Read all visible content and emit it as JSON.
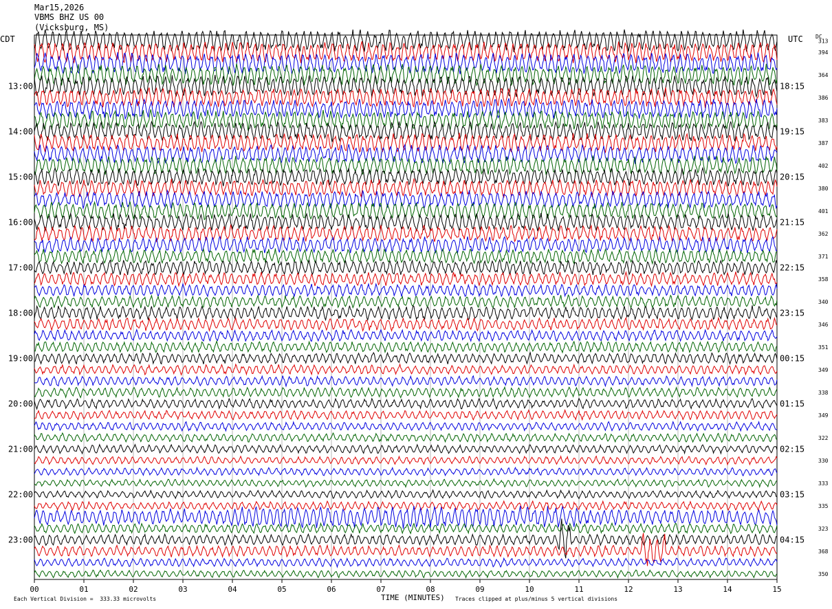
{
  "header": {
    "date": "Mar15,2026",
    "station": "VBMS BHZ US 00",
    "location": "(Vicksburg, MS)"
  },
  "left_tz": "CDT",
  "right_tz": "UTC",
  "dc_header": "DC",
  "footer": {
    "scale_note": "Each Vertical Division =  333.33 microvolts",
    "clip_note": "Traces clipped at plus/minus 5 vertical divisions"
  },
  "colors": {
    "trace_cycle": [
      "#000000",
      "#e00000",
      "#0000e0",
      "#006400"
    ],
    "grid": "#888888"
  },
  "chart_data": {
    "type": "line",
    "title": "VBMS BHZ US 00 (Vicksburg, MS) Mar15,2026",
    "xlabel": "TIME (MINUTES)",
    "x_ticks": [
      "00",
      "01",
      "02",
      "03",
      "04",
      "05",
      "06",
      "07",
      "08",
      "09",
      "10",
      "11",
      "12",
      "13",
      "14",
      "15"
    ],
    "xlim": [
      0,
      15
    ],
    "left_hour_labels": [
      "13:00",
      "14:00",
      "15:00",
      "16:00",
      "17:00",
      "18:00",
      "19:00",
      "20:00",
      "21:00",
      "22:00",
      "23:00"
    ],
    "right_hour_labels": [
      "18:15",
      "19:15",
      "20:15",
      "21:15",
      "22:15",
      "23:15",
      "00:15",
      "01:15",
      "02:15",
      "03:15",
      "04:15"
    ],
    "dc_offsets": [
      "313",
      "394",
      "",
      "364",
      "",
      "386",
      "",
      "383",
      "",
      "387",
      "",
      "402",
      "",
      "380",
      "",
      "401",
      "",
      "362",
      "",
      "371",
      "",
      "358",
      "",
      "340",
      "",
      "346",
      "",
      "351",
      "",
      "349",
      "",
      "338",
      "",
      "349",
      "",
      "322",
      "",
      "330",
      "",
      "333",
      "",
      "335",
      "",
      "323",
      "",
      "368",
      "",
      "350"
    ],
    "trace_amplitudes": [
      0.9,
      0.85,
      0.85,
      0.85,
      0.85,
      0.8,
      0.8,
      0.8,
      0.8,
      0.75,
      0.75,
      0.75,
      0.7,
      0.7,
      0.7,
      0.7,
      0.7,
      0.65,
      0.65,
      0.6,
      0.6,
      0.55,
      0.5,
      0.5,
      0.55,
      0.5,
      0.45,
      0.45,
      0.45,
      0.4,
      0.4,
      0.4,
      0.4,
      0.38,
      0.35,
      0.35,
      0.35,
      0.32,
      0.32,
      0.3,
      0.32,
      0.35,
      0.65,
      0.4,
      0.45,
      0.45,
      0.35,
      0.3
    ],
    "trace_count": 48,
    "minutes_per_trace": 15,
    "start_time_cdt": "12:15",
    "notable_events": [
      {
        "trace": 44,
        "minute": 10.7,
        "note": "large spike"
      },
      {
        "trace": 45,
        "minute": 12.5,
        "note": "burst"
      },
      {
        "trace": 42,
        "minute": 6.0,
        "note": "high noise band"
      }
    ]
  }
}
